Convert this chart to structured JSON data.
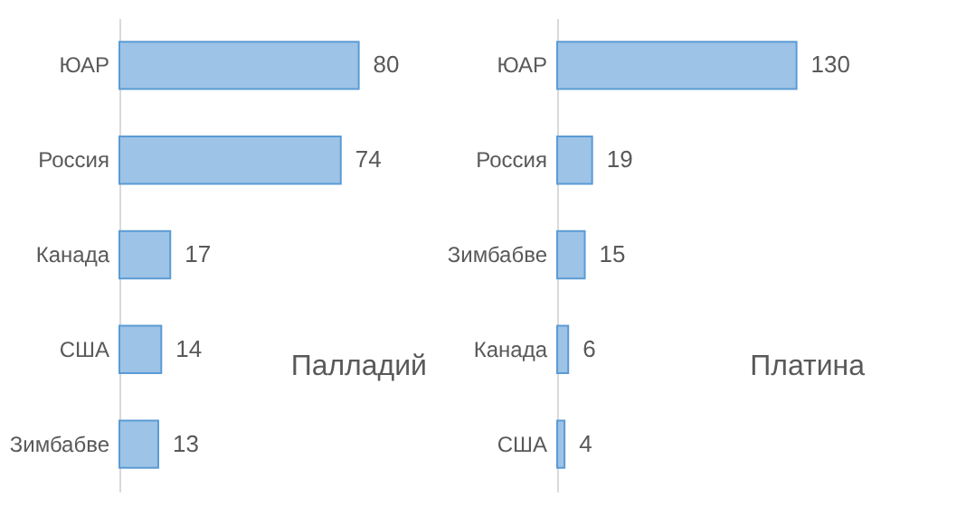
{
  "chart_data": [
    {
      "type": "bar",
      "orientation": "horizontal",
      "title": "Палладий",
      "categories": [
        "ЮАР",
        "Россия",
        "Канада",
        "США",
        "Зимбабве"
      ],
      "values": [
        80,
        74,
        17,
        14,
        13
      ],
      "color": "#9dc3e6",
      "data_labels": true,
      "tick_labels": "y"
    },
    {
      "type": "bar",
      "orientation": "horizontal",
      "title": "Платина",
      "categories": [
        "ЮАР",
        "Россия",
        "Зимбабве",
        "Канада",
        "США"
      ],
      "values": [
        130,
        19,
        15,
        6,
        4
      ],
      "color": "#9dc3e6",
      "data_labels": true,
      "tick_labels": "y"
    }
  ]
}
